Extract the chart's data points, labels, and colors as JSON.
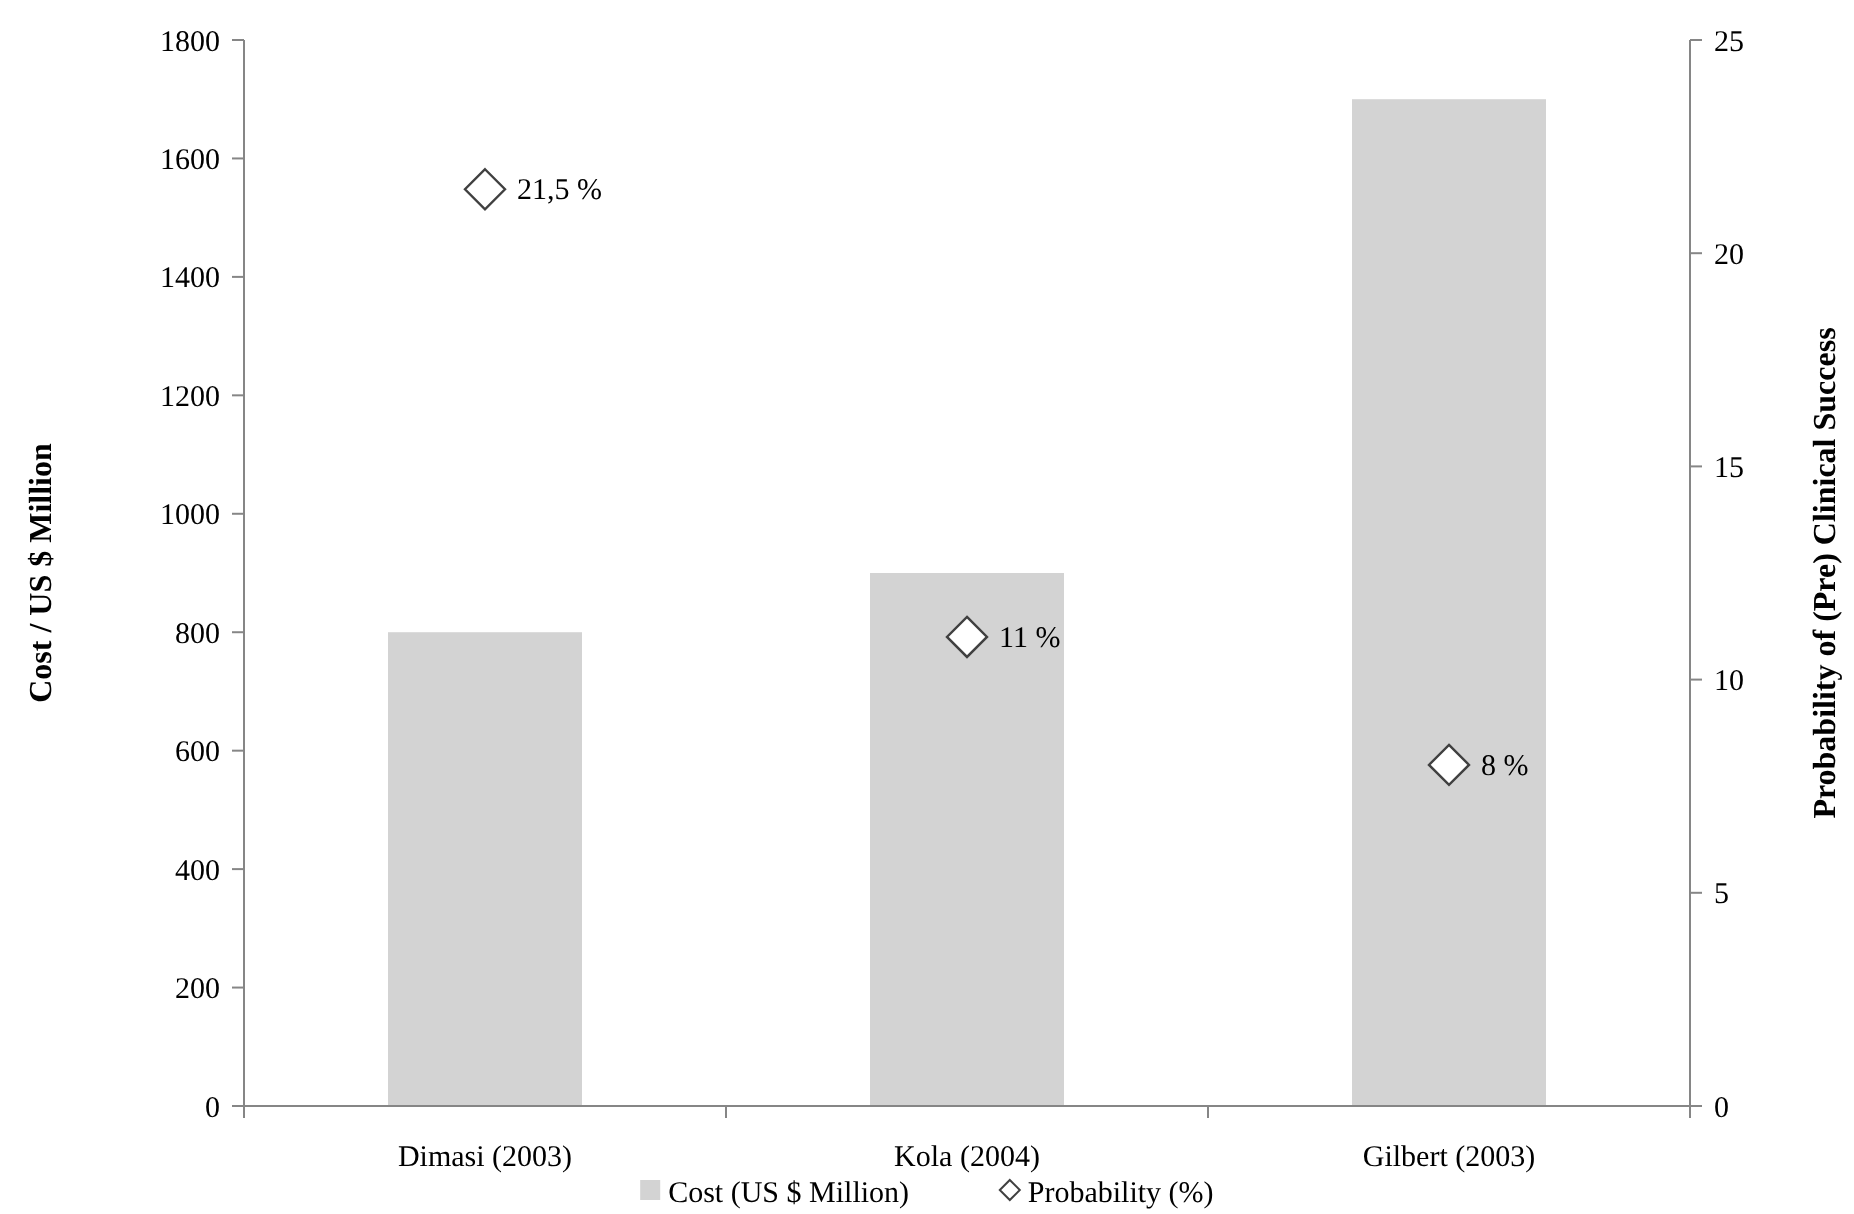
{
  "chart_data": {
    "type": "bar",
    "categories": [
      "Dimasi (2003)",
      "Kola (2004)",
      "Gilbert (2003)"
    ],
    "series": [
      {
        "name": "Cost (US $ Million)",
        "color": "#d3d3d3",
        "values": [
          800,
          900,
          1700
        ]
      },
      {
        "name": "Probability (%)",
        "type": "scatter",
        "axis": "y2",
        "marker": "diamond",
        "color": "#404040",
        "values": [
          21.5,
          11,
          8
        ],
        "value_labels": [
          "21,5 %",
          "11 %",
          "8 %"
        ]
      }
    ],
    "ylabel": "Cost / US $ Million",
    "y2label": "Probability of (Pre) Clinical Success",
    "ylim": [
      0,
      1800
    ],
    "yticks": [
      0,
      200,
      400,
      600,
      800,
      1000,
      1200,
      1400,
      1600,
      1800
    ],
    "y2lim": [
      0,
      25
    ],
    "y2ticks": [
      0,
      5,
      10,
      15,
      20,
      25
    ],
    "legend": "bottom"
  }
}
